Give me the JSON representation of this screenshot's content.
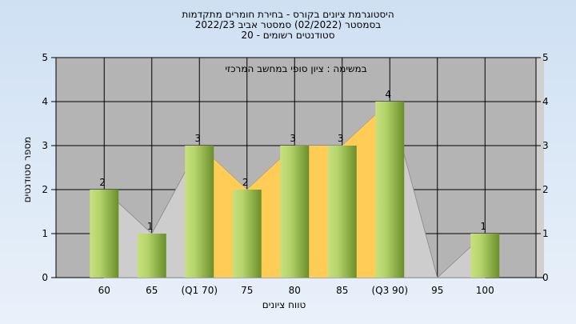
{
  "title_lines": [
    "היסטוגרמת ציונים בקורס - בחירת חומרים מתקדמות",
    "בסמסטר  (02/2022)  סמסטר אביב 2022/23",
    "סטודנטים רשומים - 20"
  ],
  "chart_data": {
    "type": "bar",
    "annotation": "במשימה : ציון סופי במחשב המרכזי",
    "categories": [
      "60",
      "65",
      "(Q1 70)",
      "75",
      "80",
      "85",
      "(Q3 90)",
      "95",
      "100"
    ],
    "values": [
      2,
      1,
      3,
      2,
      3,
      3,
      4,
      0,
      1
    ],
    "value_labels": [
      "2",
      "1",
      "3",
      "2",
      "3",
      "3",
      "4",
      "",
      "1"
    ],
    "xlabel": "טווח ציונים",
    "ylabel": "מספר סטודנטים",
    "ylim": [
      0,
      5
    ],
    "yticks": [
      "0",
      "1",
      "2",
      "3",
      "4",
      "5"
    ],
    "grid": true,
    "interquartile_band": {
      "from_category": "(Q1 70)",
      "to_category": "(Q3 90)"
    },
    "colors": {
      "plot_background": "#b4b4b4",
      "bar_light": "#c7e07e",
      "bar_dark": "#6b8e2a",
      "band": "#ffcc55",
      "area": "#cdcdcd"
    }
  }
}
